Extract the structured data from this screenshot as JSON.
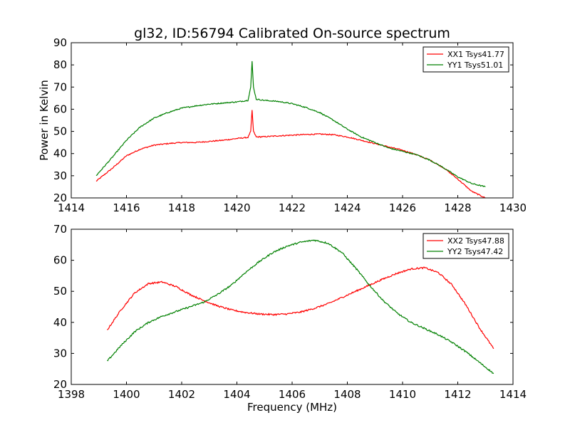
{
  "figure": {
    "title": "gl32, ID:56794 Calibrated On-source spectrum",
    "ylabel": "Power in Kelvin",
    "xlabel": "Frequency (MHz)"
  },
  "chart_data": [
    {
      "type": "line",
      "xlim": [
        1414,
        1430
      ],
      "ylim": [
        20,
        90
      ],
      "xticks": [
        1414,
        1416,
        1418,
        1420,
        1422,
        1424,
        1426,
        1428,
        1430
      ],
      "yticks": [
        20,
        30,
        40,
        50,
        60,
        70,
        80,
        90
      ],
      "ylabel": "Power in Kelvin",
      "legend_position": "top-right",
      "series": [
        {
          "name": "XX1 Tsys41.77",
          "color": "#ff0000",
          "x": [
            1414.9,
            1415.5,
            1416.0,
            1416.5,
            1417.0,
            1417.5,
            1418.0,
            1418.5,
            1419.0,
            1419.5,
            1420.0,
            1420.4,
            1420.5,
            1420.55,
            1420.6,
            1420.7,
            1421.0,
            1421.5,
            1422.0,
            1422.5,
            1423.0,
            1423.5,
            1424.0,
            1424.5,
            1425.0,
            1425.5,
            1426.0,
            1426.5,
            1427.0,
            1427.5,
            1428.0,
            1428.5,
            1429.0
          ],
          "y": [
            27.5,
            33.5,
            39.0,
            42.0,
            43.8,
            44.5,
            45.0,
            45.0,
            45.5,
            46.0,
            46.8,
            47.3,
            50.0,
            59.5,
            50.0,
            47.5,
            47.6,
            48.0,
            48.3,
            48.6,
            48.8,
            48.5,
            47.5,
            46.0,
            44.5,
            43.0,
            41.5,
            39.5,
            37.0,
            33.5,
            28.5,
            23.0,
            20.0
          ]
        },
        {
          "name": "YY1 Tsys51.01",
          "color": "#008000",
          "x": [
            1414.9,
            1415.5,
            1416.0,
            1416.5,
            1417.0,
            1417.5,
            1418.0,
            1418.5,
            1419.0,
            1419.5,
            1420.0,
            1420.4,
            1420.5,
            1420.55,
            1420.6,
            1420.7,
            1421.0,
            1421.5,
            1422.0,
            1422.5,
            1423.0,
            1423.5,
            1424.0,
            1424.5,
            1425.0,
            1425.5,
            1426.0,
            1426.5,
            1427.0,
            1427.5,
            1428.0,
            1428.5,
            1429.0
          ],
          "y": [
            30.0,
            38.5,
            46.0,
            52.0,
            56.0,
            58.5,
            60.5,
            61.5,
            62.3,
            62.8,
            63.3,
            64.0,
            70.0,
            81.5,
            70.0,
            64.5,
            64.0,
            63.5,
            62.5,
            60.8,
            58.5,
            55.0,
            51.0,
            47.5,
            45.0,
            42.5,
            41.0,
            39.5,
            37.0,
            33.5,
            29.5,
            26.5,
            25.0
          ]
        }
      ]
    },
    {
      "type": "line",
      "xlim": [
        1398,
        1414
      ],
      "ylim": [
        20,
        70
      ],
      "xticks": [
        1398,
        1400,
        1402,
        1404,
        1406,
        1408,
        1410,
        1412,
        1414
      ],
      "yticks": [
        20,
        30,
        40,
        50,
        60,
        70
      ],
      "xlabel": "Frequency (MHz)",
      "legend_position": "top-right",
      "series": [
        {
          "name": "XX2 Tsys47.88",
          "color": "#ff0000",
          "x": [
            1399.3,
            1399.8,
            1400.3,
            1400.8,
            1401.3,
            1401.8,
            1402.3,
            1402.8,
            1403.3,
            1403.8,
            1404.3,
            1404.8,
            1405.3,
            1405.8,
            1406.3,
            1406.8,
            1407.3,
            1407.8,
            1408.3,
            1408.8,
            1409.3,
            1409.8,
            1410.3,
            1410.8,
            1411.3,
            1411.8,
            1412.3,
            1412.8,
            1413.3
          ],
          "y": [
            37.5,
            44.0,
            49.5,
            52.5,
            53.0,
            51.5,
            49.0,
            47.0,
            45.3,
            44.0,
            43.2,
            42.7,
            42.5,
            42.7,
            43.3,
            44.5,
            46.0,
            48.0,
            50.0,
            52.0,
            54.0,
            55.8,
            57.2,
            57.6,
            56.0,
            52.0,
            45.5,
            38.0,
            31.5
          ]
        },
        {
          "name": "YY2 Tsys47.42",
          "color": "#008000",
          "x": [
            1399.3,
            1399.8,
            1400.3,
            1400.8,
            1401.3,
            1401.8,
            1402.3,
            1402.8,
            1403.3,
            1403.8,
            1404.3,
            1404.8,
            1405.3,
            1405.8,
            1406.3,
            1406.8,
            1407.3,
            1407.8,
            1408.3,
            1408.8,
            1409.3,
            1409.8,
            1410.3,
            1410.8,
            1411.3,
            1411.8,
            1412.3,
            1412.8,
            1413.3
          ],
          "y": [
            27.5,
            32.5,
            37.0,
            40.0,
            42.0,
            43.5,
            45.0,
            46.5,
            49.0,
            52.0,
            56.0,
            59.5,
            62.5,
            64.5,
            65.8,
            66.5,
            65.5,
            62.5,
            57.5,
            52.0,
            47.0,
            43.0,
            40.0,
            38.0,
            36.0,
            33.5,
            30.5,
            27.0,
            23.5
          ]
        }
      ]
    }
  ]
}
